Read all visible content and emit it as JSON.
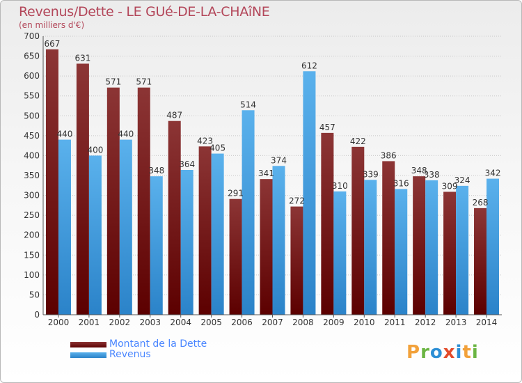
{
  "header": {
    "title": "Revenus/Dette - LE GUé-DE-LA-CHAîNE",
    "subtitle": "(en milliers d'€)"
  },
  "chart_data": {
    "type": "bar",
    "categories": [
      "2000",
      "2001",
      "2002",
      "2003",
      "2004",
      "2005",
      "2006",
      "2007",
      "2008",
      "2009",
      "2010",
      "2011",
      "2012",
      "2013",
      "2014"
    ],
    "series": [
      {
        "name": "Montant de la Dette",
        "color": "#7a1a1a",
        "values": [
          667,
          631,
          571,
          571,
          487,
          423,
          291,
          341,
          272,
          457,
          422,
          386,
          348,
          309,
          268
        ]
      },
      {
        "name": "Revenus",
        "color": "#4aa3e6",
        "values": [
          440,
          400,
          440,
          348,
          364,
          405,
          514,
          374,
          612,
          310,
          339,
          316,
          338,
          324,
          342
        ]
      }
    ],
    "yticks": [
      0,
      50,
      100,
      150,
      200,
      250,
      300,
      350,
      400,
      450,
      500,
      550,
      600,
      650,
      700
    ],
    "ylim": [
      0,
      700
    ],
    "xlabel": "",
    "ylabel": "",
    "grid": true,
    "legend_position": "bottom-left"
  },
  "legend": {
    "debt_label": "Montant de la Dette",
    "revenue_label": "Revenus"
  },
  "logo": {
    "letters": [
      "P",
      "r",
      "o",
      "x",
      "i",
      "t",
      "i"
    ],
    "colors": [
      "#f2a13a",
      "#6bb543",
      "#2d8fd5",
      "#e34b2a",
      "#2d8fd5",
      "#f2a13a",
      "#6bb543"
    ]
  }
}
